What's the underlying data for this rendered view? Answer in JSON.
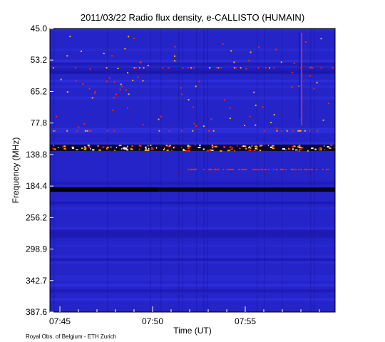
{
  "chart_data": {
    "type": "heatmap",
    "title": "2011/03/22  Radio flux density, e-CALLISTO (HUMAIN)",
    "xlabel": "Time (UT)",
    "ylabel": "Frequency (MHz)",
    "x_ticks": [
      "07:45",
      "07:50",
      "07:55"
    ],
    "y_ticks": [
      "45.0",
      "53.2",
      "65.2",
      "77.8",
      "138.8",
      "184.4",
      "256.2",
      "298.9",
      "342.7",
      "387.6"
    ],
    "colormap": [
      "#000000",
      "#1a10a0",
      "#2a2ad8",
      "#ff2200",
      "#ffb000",
      "#ffffff"
    ],
    "background_color": "#2424c8",
    "grid": false,
    "features": {
      "strong_band_freq": "138.8",
      "dark_band_freq": "184.4",
      "vertical_burst_time": "07:58"
    }
  },
  "footer": {
    "credit": "Royal Obs. of Belgium - ETH Zurich"
  }
}
